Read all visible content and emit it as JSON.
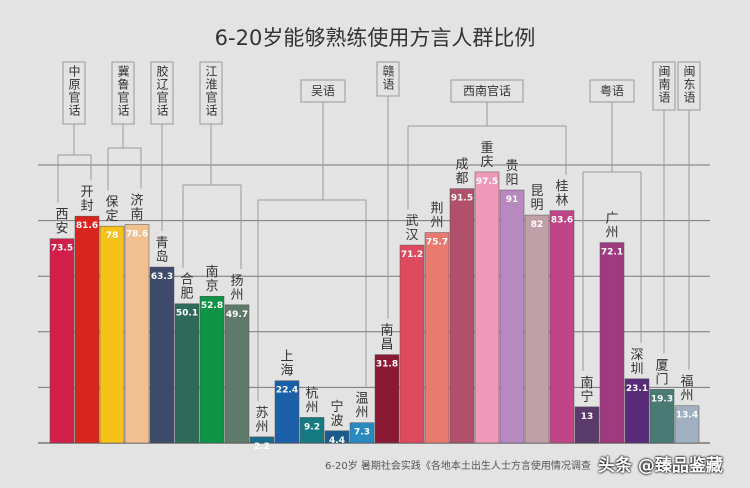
{
  "chart_data": {
    "type": "bar",
    "title": "6-20岁能够熟练使用方言人群比例",
    "ylim": [
      0,
      100
    ],
    "grid": true,
    "categories": [
      "西安",
      "开封",
      "保定",
      "济南",
      "青岛",
      "合肥",
      "南京",
      "扬州",
      "苏州",
      "上海",
      "杭州",
      "宁波",
      "温州",
      "南昌",
      "武汉",
      "荆州",
      "成都",
      "重庆",
      "贵阳",
      "昆明",
      "桂林",
      "南宁",
      "广州",
      "深圳",
      "厦门",
      "福州"
    ],
    "values": [
      73.5,
      81.6,
      78,
      78.6,
      63.3,
      50.1,
      52.8,
      49.7,
      2.2,
      22.4,
      9.2,
      4.4,
      7.3,
      31.8,
      71.2,
      75.7,
      91.5,
      97.5,
      91,
      82,
      83.6,
      13,
      72.1,
      23.1,
      19.3,
      13.4
    ],
    "colors": [
      "#d21f4a",
      "#d9251f",
      "#f6c21a",
      "#f2c090",
      "#3d4a6b",
      "#2e6a5a",
      "#0d9444",
      "#5e7a6a",
      "#1a6a8c",
      "#1a5fa8",
      "#167a82",
      "#1a5c8c",
      "#2a8ac0",
      "#8a1a34",
      "#e04a5f",
      "#e87a70",
      "#b0506a",
      "#f098b8",
      "#b888c0",
      "#c0a0a8",
      "#c04488",
      "#5a3a6a",
      "#a03a80",
      "#5a2a78",
      "#4a7a74",
      "#a0b0c0"
    ],
    "groups": [
      {
        "label": "中原官话",
        "members": [
          0,
          1
        ],
        "vertical": true
      },
      {
        "label": "冀鲁官话",
        "members": [
          2,
          3
        ],
        "vertical": true
      },
      {
        "label": "胶辽官话",
        "members": [
          4
        ],
        "vertical": true
      },
      {
        "label": "江淮官话",
        "members": [
          5,
          6,
          7
        ],
        "vertical": true
      },
      {
        "label": "吴语",
        "members": [
          8,
          9,
          10,
          11,
          12
        ],
        "vertical": false
      },
      {
        "label": "赣语",
        "members": [
          13
        ],
        "vertical": true
      },
      {
        "label": "西南官话",
        "members": [
          14,
          15,
          16,
          17,
          18,
          19,
          20
        ],
        "vertical": false
      },
      {
        "label": "粤语",
        "members": [
          21,
          22,
          23
        ],
        "vertical": false
      },
      {
        "label": "闽南语",
        "members": [
          24
        ],
        "vertical": true
      },
      {
        "label": "闽东语",
        "members": [
          25
        ],
        "vertical": true
      }
    ]
  },
  "source": "6-20岁 暑期社会实践《各地本土出生人士方言使用情况调查",
  "watermark": "头条 @臻品鉴藏"
}
